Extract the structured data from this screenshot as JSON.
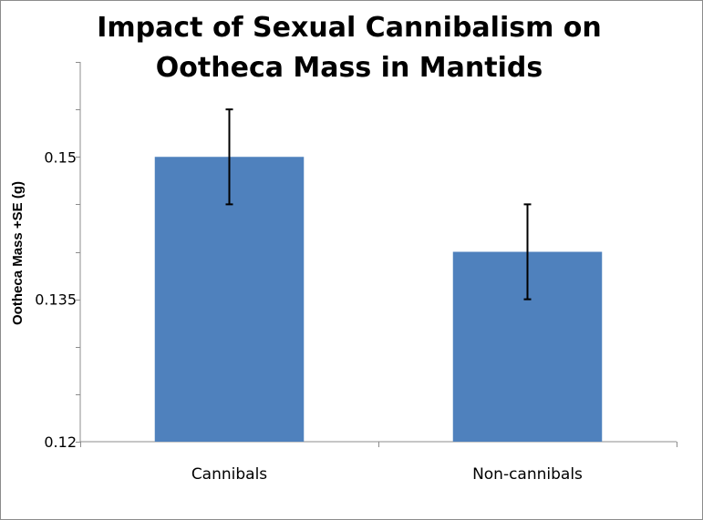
{
  "chart_data": {
    "type": "bar",
    "title": "Impact of Sexual Cannibalism on Ootheca Mass in Mantids",
    "title_lines": [
      "Impact of Sexual Cannibalism on",
      "Ootheca Mass in Mantids"
    ],
    "ylabel": "Ootheca Mass +SE (g)",
    "xlabel": "",
    "categories": [
      "Cannibals",
      "Non-cannibals"
    ],
    "values": [
      0.15,
      0.14
    ],
    "error_se": [
      0.005,
      0.005
    ],
    "ylim": [
      0.12,
      0.16
    ],
    "ytick_labels": [
      {
        "value": 0.15,
        "label": "0.15"
      },
      {
        "value": 0.135,
        "label": "0.135"
      },
      {
        "value": 0.12,
        "label": "0.12"
      }
    ],
    "minor_tick_step": 0.005,
    "bar_color": "#4f81bd",
    "grid": false,
    "legend": "none"
  }
}
